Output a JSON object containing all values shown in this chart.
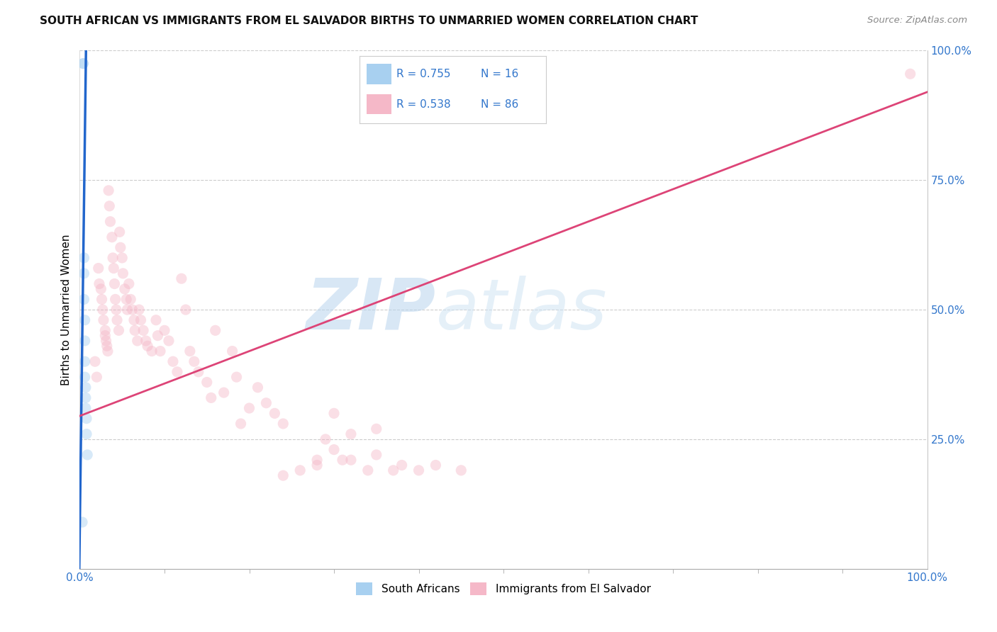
{
  "title": "SOUTH AFRICAN VS IMMIGRANTS FROM EL SALVADOR BIRTHS TO UNMARRIED WOMEN CORRELATION CHART",
  "source": "Source: ZipAtlas.com",
  "ylabel": "Births to Unmarried Women",
  "xlim": [
    0.0,
    1.0
  ],
  "ylim": [
    0.0,
    1.0
  ],
  "yticks_right": [
    0.25,
    0.5,
    0.75,
    1.0
  ],
  "ytick_right_labels": [
    "25.0%",
    "50.0%",
    "75.0%",
    "100.0%"
  ],
  "xtick_labels_shown": [
    "0.0%",
    "100.0%"
  ],
  "blue_scatter_x": [
    0.004,
    0.004,
    0.005,
    0.005,
    0.005,
    0.006,
    0.006,
    0.006,
    0.006,
    0.007,
    0.007,
    0.007,
    0.008,
    0.008,
    0.009,
    0.003
  ],
  "blue_scatter_y": [
    0.975,
    0.975,
    0.6,
    0.57,
    0.52,
    0.48,
    0.44,
    0.4,
    0.37,
    0.35,
    0.33,
    0.31,
    0.29,
    0.26,
    0.22,
    0.09
  ],
  "pink_scatter_x": [
    0.018,
    0.02,
    0.022,
    0.023,
    0.025,
    0.026,
    0.027,
    0.028,
    0.03,
    0.03,
    0.031,
    0.032,
    0.033,
    0.034,
    0.035,
    0.036,
    0.038,
    0.039,
    0.04,
    0.041,
    0.042,
    0.043,
    0.044,
    0.046,
    0.047,
    0.048,
    0.05,
    0.051,
    0.053,
    0.055,
    0.056,
    0.058,
    0.06,
    0.062,
    0.064,
    0.065,
    0.068,
    0.07,
    0.072,
    0.075,
    0.078,
    0.08,
    0.085,
    0.09,
    0.092,
    0.095,
    0.1,
    0.105,
    0.11,
    0.115,
    0.12,
    0.125,
    0.13,
    0.135,
    0.14,
    0.15,
    0.155,
    0.16,
    0.17,
    0.18,
    0.185,
    0.19,
    0.2,
    0.21,
    0.22,
    0.23,
    0.24,
    0.28,
    0.29,
    0.3,
    0.31,
    0.32,
    0.34,
    0.35,
    0.37,
    0.38,
    0.4,
    0.42,
    0.45,
    0.3,
    0.32,
    0.35,
    0.28,
    0.26,
    0.24,
    0.98
  ],
  "pink_scatter_y": [
    0.4,
    0.37,
    0.58,
    0.55,
    0.54,
    0.52,
    0.5,
    0.48,
    0.46,
    0.45,
    0.44,
    0.43,
    0.42,
    0.73,
    0.7,
    0.67,
    0.64,
    0.6,
    0.58,
    0.55,
    0.52,
    0.5,
    0.48,
    0.46,
    0.65,
    0.62,
    0.6,
    0.57,
    0.54,
    0.52,
    0.5,
    0.55,
    0.52,
    0.5,
    0.48,
    0.46,
    0.44,
    0.5,
    0.48,
    0.46,
    0.44,
    0.43,
    0.42,
    0.48,
    0.45,
    0.42,
    0.46,
    0.44,
    0.4,
    0.38,
    0.56,
    0.5,
    0.42,
    0.4,
    0.38,
    0.36,
    0.33,
    0.46,
    0.34,
    0.42,
    0.37,
    0.28,
    0.31,
    0.35,
    0.32,
    0.3,
    0.28,
    0.2,
    0.25,
    0.23,
    0.21,
    0.21,
    0.19,
    0.22,
    0.19,
    0.2,
    0.19,
    0.2,
    0.19,
    0.3,
    0.26,
    0.27,
    0.21,
    0.19,
    0.18,
    0.955
  ],
  "blue_line_x": [
    -0.001,
    0.0075
  ],
  "blue_line_y": [
    -0.05,
    1.02
  ],
  "pink_line_x": [
    0.0,
    1.0
  ],
  "pink_line_y": [
    0.295,
    0.92
  ],
  "blue_color": "#a8d0f0",
  "pink_color": "#f5b8c8",
  "blue_line_color": "#2266cc",
  "pink_line_color": "#dd4477",
  "r_blue": "R = 0.755",
  "n_blue": "N = 16",
  "r_pink": "R = 0.538",
  "n_pink": "N = 86",
  "grid_color": "#cccccc",
  "watermark_zip": "ZIP",
  "watermark_atlas": "atlas",
  "scatter_size": 120,
  "scatter_alpha": 0.45,
  "figsize": [
    14.06,
    8.92
  ],
  "dpi": 100
}
